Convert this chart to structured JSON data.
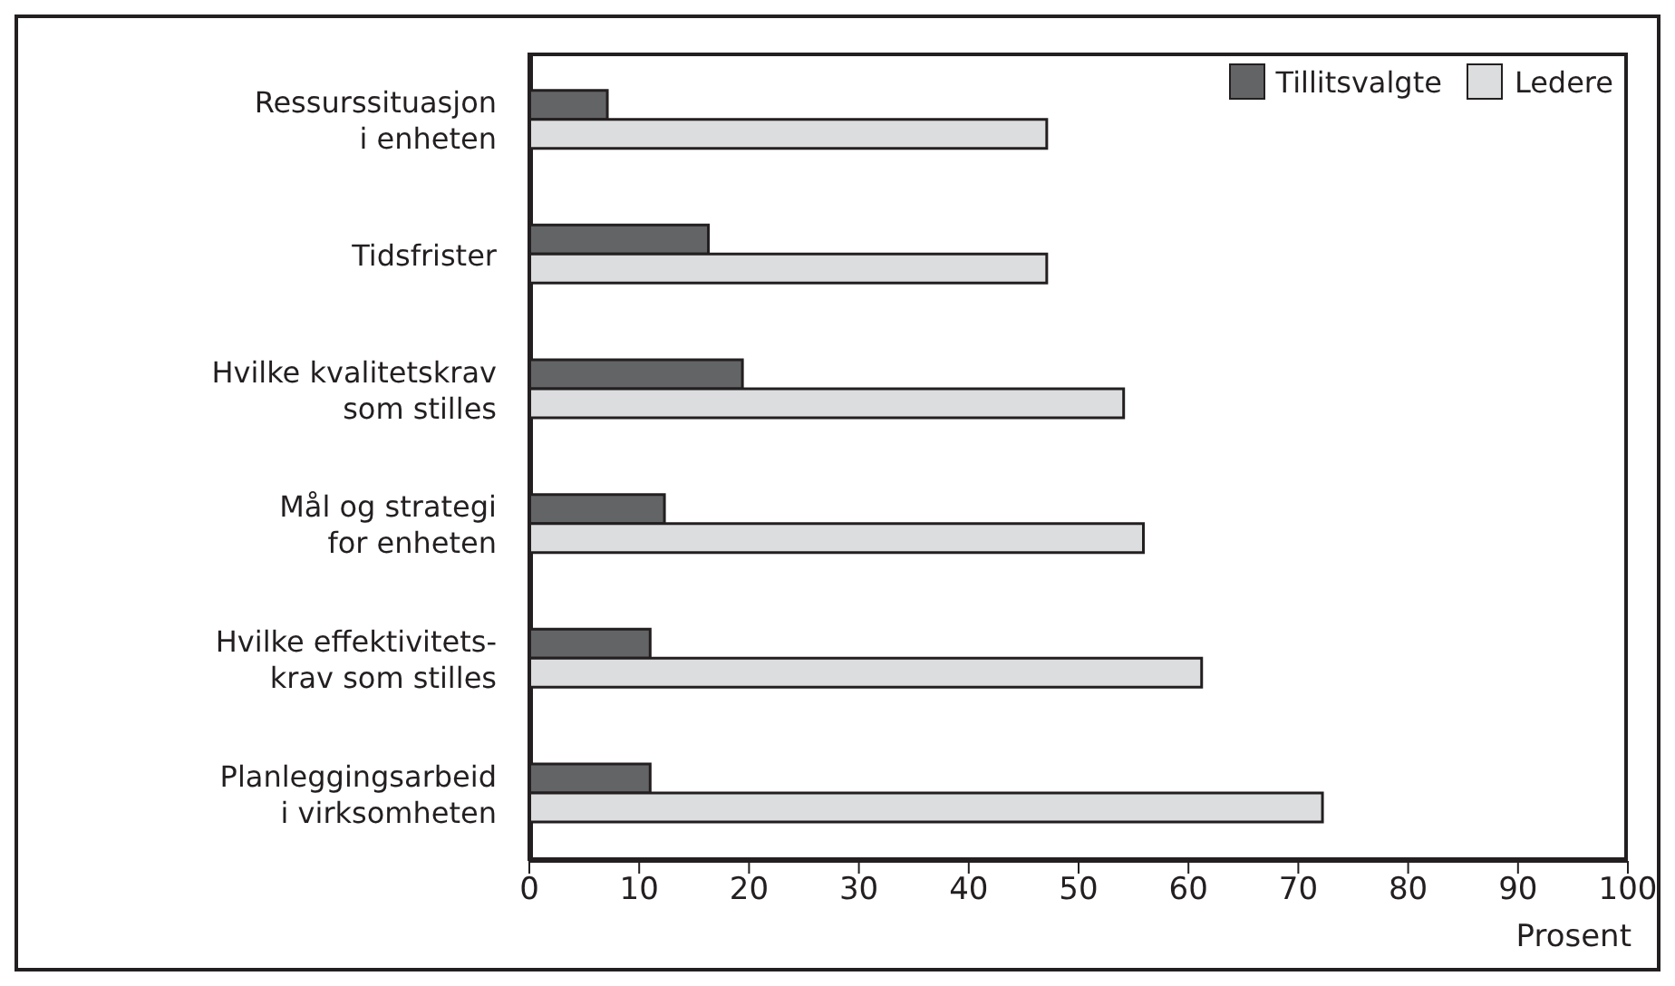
{
  "chart_data": {
    "type": "bar",
    "orientation": "horizontal",
    "xlabel": "Prosent",
    "categories": [
      "Ressurssituasjon\ni enheten",
      "Tidsfrister",
      "Hvilke kvalitetskrav\nsom stilles",
      "Mål og strategi\nfor enheten",
      "Hvilke effektivitets-\nkrav som stilles",
      "Planleggingsarbeid\ni virksomheten"
    ],
    "series": [
      {
        "name": "Tillitsvalgte",
        "color": "#636466",
        "values": [
          7.1,
          16.3,
          19.4,
          12.3,
          11.0,
          11.0
        ]
      },
      {
        "name": "Ledere",
        "color": "#dcddde",
        "values": [
          47.1,
          47.1,
          54.1,
          55.9,
          61.2,
          72.2
        ]
      }
    ],
    "xlim": [
      0,
      100
    ],
    "xticks": [
      0,
      10,
      20,
      30,
      40,
      50,
      60,
      70,
      80,
      90,
      100
    ],
    "grid": false,
    "legend": "top right"
  }
}
